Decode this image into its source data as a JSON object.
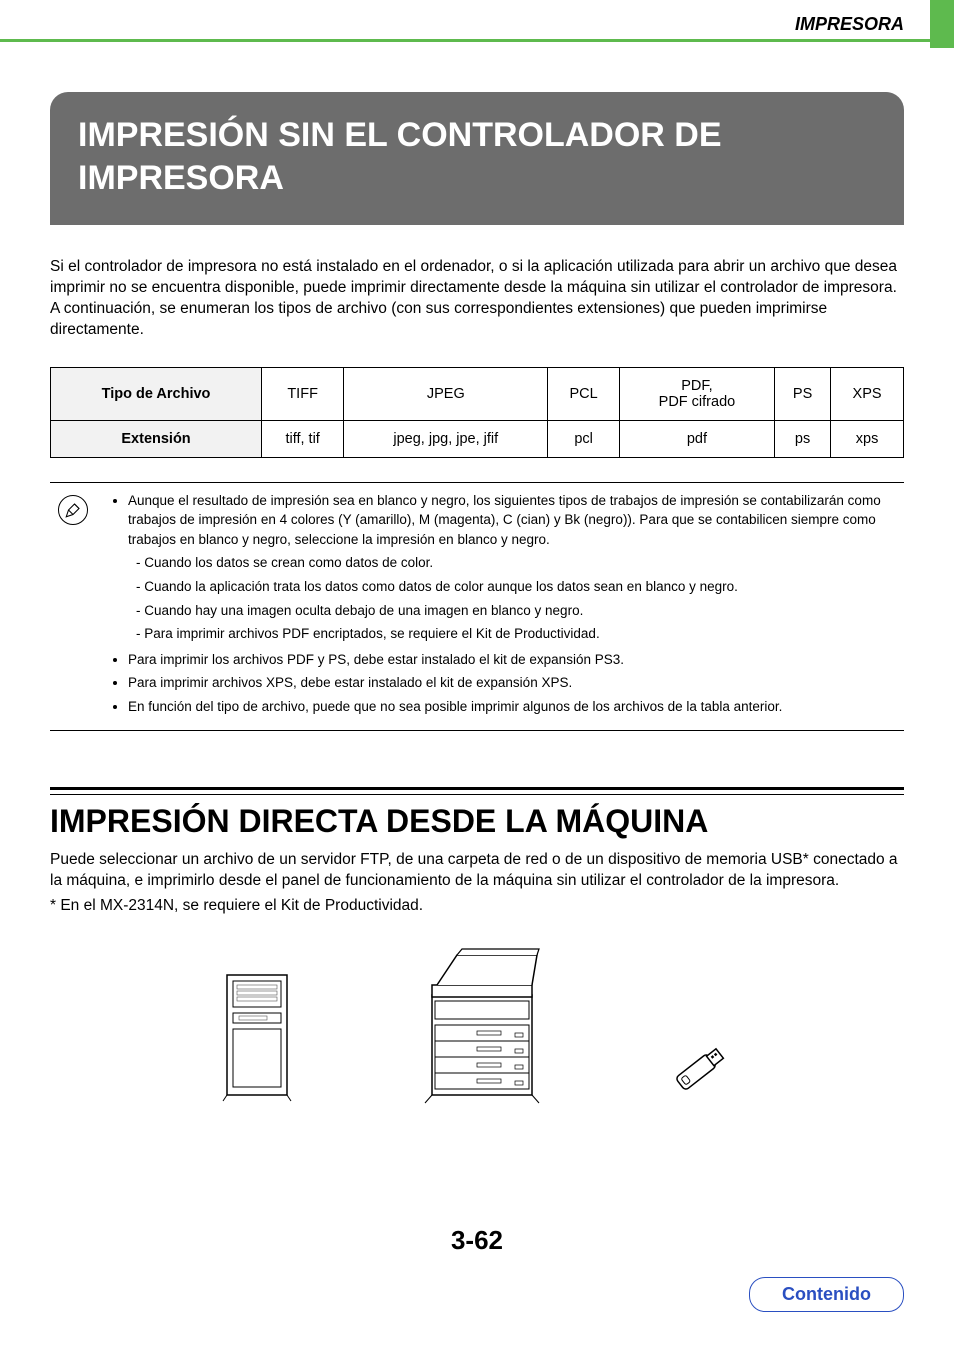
{
  "header": {
    "category": "IMPRESORA"
  },
  "title": "IMPRESIÓN SIN EL CONTROLADOR DE IMPRESORA",
  "intro": "Si el controlador de impresora no está instalado en el ordenador, o si la aplicación utilizada para abrir un archivo que desea imprimir no se encuentra disponible, puede imprimir directamente desde la máquina sin utilizar el controlador de impresora.\nA continuación, se enumeran los tipos de archivo (con sus correspondientes extensiones) que pueden imprimirse directamente.",
  "table": {
    "row_headers": [
      "Tipo de Archivo",
      "Extensión"
    ],
    "columns": [
      "TIFF",
      "JPEG",
      "PCL",
      "PDF,\nPDF cifrado",
      "PS",
      "XPS"
    ],
    "extensions": [
      "tiff, tif",
      "jpeg, jpg, jpe, jfif",
      "pcl",
      "pdf",
      "ps",
      "xps"
    ]
  },
  "notes": {
    "bullets": [
      {
        "text": "Aunque el resultado de impresión sea en blanco y negro, los siguientes tipos de trabajos de impresión se contabilizarán como trabajos de impresión en 4 colores (Y (amarillo), M (magenta), C (cian) y Bk (negro)). Para que se contabilicen siempre como trabajos en blanco y negro, seleccione la impresión en blanco y negro.",
        "subitems": [
          "Cuando los datos se crean como datos de color.",
          "Cuando la aplicación trata los datos como datos de color aunque los datos sean en blanco y negro.",
          "Cuando hay una imagen oculta debajo de una imagen en blanco y negro.",
          "Para imprimir archivos PDF encriptados, se requiere el Kit de Productividad."
        ]
      },
      {
        "text": "Para imprimir los archivos PDF y PS, debe estar instalado el kit de expansión PS3."
      },
      {
        "text": "Para imprimir archivos XPS, debe estar instalado el kit de expansión XPS."
      },
      {
        "text": "En función del tipo de archivo, puede que no sea posible imprimir algunos de los archivos de la tabla anterior."
      }
    ]
  },
  "section2": {
    "title": "IMPRESIÓN DIRECTA DESDE LA MÁQUINA",
    "text": "Puede seleccionar un archivo de un servidor FTP, de una carpeta de red o de un dispositivo de memoria USB* conectado a la máquina, e imprimirlo desde el panel de funcionamiento de la máquina sin utilizar el controlador de la impresora.",
    "footnote": "*  En el MX-2314N, se requiere el Kit de Productividad."
  },
  "page_number": "3-62",
  "link": {
    "label": "Contenido"
  },
  "colors": {
    "green": "#5eba4e",
    "title_bg": "#6d6d6d",
    "link": "#2a4fc1"
  }
}
